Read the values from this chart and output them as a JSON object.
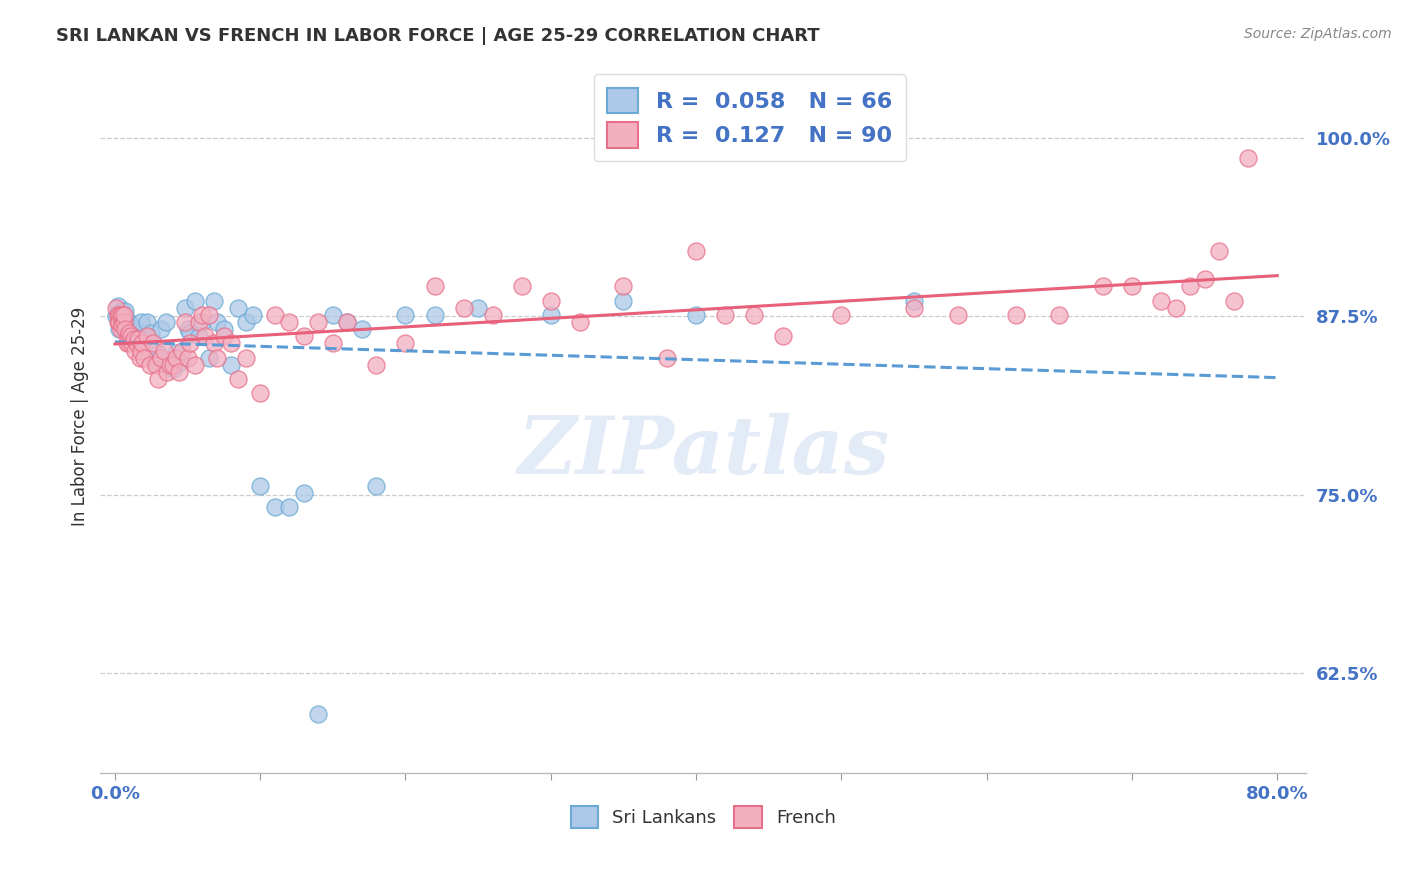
{
  "title": "SRI LANKAN VS FRENCH IN LABOR FORCE | AGE 25-29 CORRELATION CHART",
  "source_text": "Source: ZipAtlas.com",
  "ylabel": "In Labor Force | Age 25-29",
  "xlim": [
    -0.01,
    0.82
  ],
  "ylim": [
    0.555,
    1.055
  ],
  "xtick_positions": [
    0.0,
    0.1,
    0.2,
    0.3,
    0.4,
    0.5,
    0.6,
    0.7,
    0.8
  ],
  "xtick_label_left": "0.0%",
  "xtick_label_right": "80.0%",
  "ytick_labels": [
    "62.5%",
    "75.0%",
    "87.5%",
    "100.0%"
  ],
  "ytick_positions": [
    0.625,
    0.75,
    0.875,
    1.0
  ],
  "sri_lankan_color": "#adc8e8",
  "french_color": "#f2afc0",
  "sri_lankan_edge": "#6aaad4",
  "french_edge": "#e8708a",
  "sri_lankan_R": 0.058,
  "sri_lankan_N": 66,
  "french_R": 0.127,
  "french_N": 90,
  "trend_sri_lankan_color": "#5b9bd5",
  "trend_french_color": "#e8607a",
  "watermark": "ZIPatlas",
  "background_color": "#ffffff",
  "sri_lankan_points": [
    [
      0.001,
      0.875
    ],
    [
      0.002,
      0.877
    ],
    [
      0.002,
      0.882
    ],
    [
      0.003,
      0.873
    ],
    [
      0.003,
      0.866
    ],
    [
      0.004,
      0.871
    ],
    [
      0.004,
      0.876
    ],
    [
      0.005,
      0.879
    ],
    [
      0.005,
      0.873
    ],
    [
      0.006,
      0.871
    ],
    [
      0.006,
      0.876
    ],
    [
      0.007,
      0.869
    ],
    [
      0.007,
      0.879
    ],
    [
      0.008,
      0.866
    ],
    [
      0.009,
      0.871
    ],
    [
      0.01,
      0.871
    ],
    [
      0.01,
      0.866
    ],
    [
      0.011,
      0.869
    ],
    [
      0.012,
      0.861
    ],
    [
      0.013,
      0.856
    ],
    [
      0.013,
      0.861
    ],
    [
      0.014,
      0.866
    ],
    [
      0.015,
      0.856
    ],
    [
      0.016,
      0.859
    ],
    [
      0.018,
      0.871
    ],
    [
      0.02,
      0.859
    ],
    [
      0.022,
      0.871
    ],
    [
      0.025,
      0.863
    ],
    [
      0.028,
      0.844
    ],
    [
      0.03,
      0.849
    ],
    [
      0.032,
      0.866
    ],
    [
      0.035,
      0.871
    ],
    [
      0.038,
      0.841
    ],
    [
      0.04,
      0.838
    ],
    [
      0.042,
      0.849
    ],
    [
      0.045,
      0.843
    ],
    [
      0.048,
      0.881
    ],
    [
      0.05,
      0.866
    ],
    [
      0.052,
      0.863
    ],
    [
      0.055,
      0.886
    ],
    [
      0.058,
      0.861
    ],
    [
      0.06,
      0.871
    ],
    [
      0.065,
      0.846
    ],
    [
      0.068,
      0.886
    ],
    [
      0.07,
      0.871
    ],
    [
      0.075,
      0.866
    ],
    [
      0.08,
      0.841
    ],
    [
      0.085,
      0.881
    ],
    [
      0.09,
      0.871
    ],
    [
      0.095,
      0.876
    ],
    [
      0.1,
      0.756
    ],
    [
      0.11,
      0.741
    ],
    [
      0.12,
      0.741
    ],
    [
      0.13,
      0.751
    ],
    [
      0.14,
      0.596
    ],
    [
      0.15,
      0.876
    ],
    [
      0.16,
      0.871
    ],
    [
      0.17,
      0.866
    ],
    [
      0.18,
      0.756
    ],
    [
      0.2,
      0.876
    ],
    [
      0.22,
      0.876
    ],
    [
      0.25,
      0.881
    ],
    [
      0.3,
      0.876
    ],
    [
      0.35,
      0.886
    ],
    [
      0.4,
      0.876
    ],
    [
      0.55,
      0.886
    ]
  ],
  "french_points": [
    [
      0.001,
      0.881
    ],
    [
      0.002,
      0.876
    ],
    [
      0.002,
      0.871
    ],
    [
      0.003,
      0.876
    ],
    [
      0.003,
      0.871
    ],
    [
      0.004,
      0.866
    ],
    [
      0.004,
      0.876
    ],
    [
      0.005,
      0.871
    ],
    [
      0.005,
      0.876
    ],
    [
      0.005,
      0.869
    ],
    [
      0.006,
      0.871
    ],
    [
      0.006,
      0.876
    ],
    [
      0.007,
      0.866
    ],
    [
      0.008,
      0.856
    ],
    [
      0.009,
      0.861
    ],
    [
      0.009,
      0.859
    ],
    [
      0.01,
      0.863
    ],
    [
      0.01,
      0.856
    ],
    [
      0.011,
      0.861
    ],
    [
      0.012,
      0.856
    ],
    [
      0.013,
      0.859
    ],
    [
      0.014,
      0.851
    ],
    [
      0.015,
      0.856
    ],
    [
      0.016,
      0.859
    ],
    [
      0.017,
      0.846
    ],
    [
      0.018,
      0.851
    ],
    [
      0.019,
      0.856
    ],
    [
      0.02,
      0.846
    ],
    [
      0.022,
      0.861
    ],
    [
      0.024,
      0.841
    ],
    [
      0.026,
      0.856
    ],
    [
      0.028,
      0.841
    ],
    [
      0.03,
      0.831
    ],
    [
      0.032,
      0.846
    ],
    [
      0.034,
      0.851
    ],
    [
      0.036,
      0.836
    ],
    [
      0.038,
      0.841
    ],
    [
      0.04,
      0.841
    ],
    [
      0.042,
      0.846
    ],
    [
      0.044,
      0.836
    ],
    [
      0.046,
      0.851
    ],
    [
      0.048,
      0.871
    ],
    [
      0.05,
      0.846
    ],
    [
      0.052,
      0.856
    ],
    [
      0.055,
      0.841
    ],
    [
      0.058,
      0.871
    ],
    [
      0.06,
      0.876
    ],
    [
      0.062,
      0.861
    ],
    [
      0.065,
      0.876
    ],
    [
      0.068,
      0.856
    ],
    [
      0.07,
      0.846
    ],
    [
      0.075,
      0.861
    ],
    [
      0.08,
      0.856
    ],
    [
      0.085,
      0.831
    ],
    [
      0.09,
      0.846
    ],
    [
      0.1,
      0.821
    ],
    [
      0.11,
      0.876
    ],
    [
      0.12,
      0.871
    ],
    [
      0.13,
      0.861
    ],
    [
      0.14,
      0.871
    ],
    [
      0.15,
      0.856
    ],
    [
      0.16,
      0.871
    ],
    [
      0.18,
      0.841
    ],
    [
      0.2,
      0.856
    ],
    [
      0.22,
      0.896
    ],
    [
      0.24,
      0.881
    ],
    [
      0.26,
      0.876
    ],
    [
      0.28,
      0.896
    ],
    [
      0.3,
      0.886
    ],
    [
      0.32,
      0.871
    ],
    [
      0.35,
      0.896
    ],
    [
      0.38,
      0.846
    ],
    [
      0.4,
      0.921
    ],
    [
      0.42,
      0.876
    ],
    [
      0.44,
      0.876
    ],
    [
      0.46,
      0.861
    ],
    [
      0.5,
      0.876
    ],
    [
      0.55,
      0.881
    ],
    [
      0.58,
      0.876
    ],
    [
      0.62,
      0.876
    ],
    [
      0.65,
      0.876
    ],
    [
      0.68,
      0.896
    ],
    [
      0.7,
      0.896
    ],
    [
      0.72,
      0.886
    ],
    [
      0.73,
      0.881
    ],
    [
      0.74,
      0.896
    ],
    [
      0.75,
      0.901
    ],
    [
      0.76,
      0.921
    ],
    [
      0.77,
      0.886
    ],
    [
      0.78,
      0.986
    ]
  ]
}
